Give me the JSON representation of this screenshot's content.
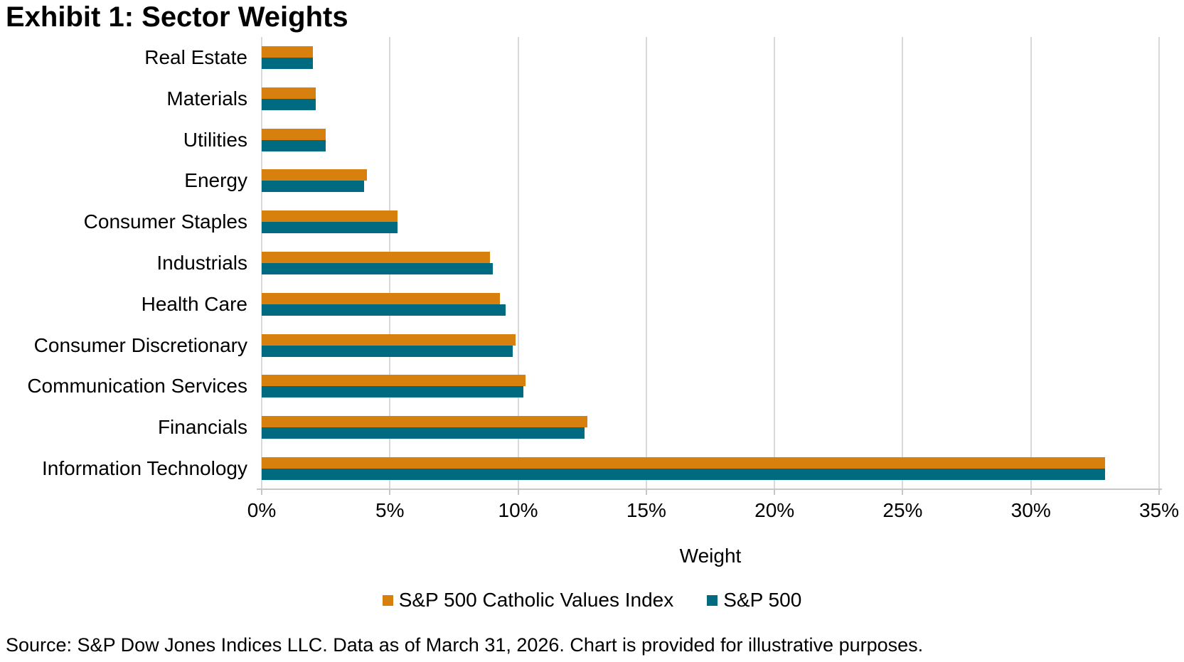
{
  "title": "Exhibit 1: Sector Weights",
  "source_note": "Source: S&P Dow Jones Indices LLC. Data as of March 31, 2026. Chart is provided for illustrative purposes.",
  "colors": {
    "series_orange": "#D8800E",
    "series_teal": "#006A80",
    "gridline": "#D9D9D9",
    "axis_line": "#C6C6C6",
    "text": "#000000",
    "background": "#FFFFFF"
  },
  "chart_data": {
    "type": "bar",
    "orientation": "horizontal",
    "title": "Exhibit 1: Sector Weights",
    "xlabel": "Weight",
    "ylabel": "",
    "xlim": [
      0,
      35
    ],
    "x_tick_step": 5,
    "x_ticks": [
      "0%",
      "5%",
      "10%",
      "15%",
      "20%",
      "25%",
      "30%",
      "35%"
    ],
    "grid": true,
    "legend_position": "bottom",
    "categories": [
      "Real Estate",
      "Materials",
      "Utilities",
      "Energy",
      "Consumer Staples",
      "Industrials",
      "Health Care",
      "Consumer Discretionary",
      "Communication Services",
      "Financials",
      "Information Technology"
    ],
    "series": [
      {
        "name": "S&P 500 Catholic Values Index",
        "color": "#D8800E",
        "values": [
          2.0,
          2.1,
          2.5,
          4.1,
          5.3,
          8.9,
          9.3,
          9.9,
          10.3,
          12.7,
          32.9
        ]
      },
      {
        "name": "S&P 500",
        "color": "#006A80",
        "values": [
          2.0,
          2.1,
          2.5,
          4.0,
          5.3,
          9.0,
          9.5,
          9.8,
          10.2,
          12.6,
          32.9
        ]
      }
    ]
  }
}
